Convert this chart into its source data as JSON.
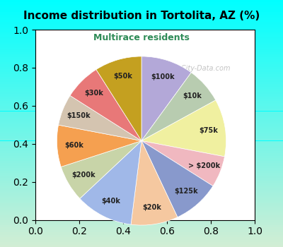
{
  "title": "Income distribution in Tortolita, AZ (%)",
  "subtitle": "Multirace residents",
  "title_color": "#000000",
  "subtitle_color": "#2e8b57",
  "background_top": "#00ffff",
  "background_bottom": "#e8f5e8",
  "watermark": "City-Data.com",
  "labels": [
    "$100k",
    "$10k",
    "$75k",
    "> $200k",
    "$125k",
    "$20k",
    "$40k",
    "$200k",
    "$60k",
    "$150k",
    "$30k",
    "$50k"
  ],
  "values": [
    10,
    7,
    11,
    6,
    9,
    9,
    11,
    7,
    8,
    6,
    7,
    9
  ],
  "colors": [
    "#b3a8d8",
    "#b8ccb0",
    "#f0f0a0",
    "#f0b8c0",
    "#8899cc",
    "#f5c8a0",
    "#a0b8e8",
    "#c8d4a8",
    "#f5a050",
    "#d4c4b0",
    "#e87878",
    "#c4a020"
  ]
}
